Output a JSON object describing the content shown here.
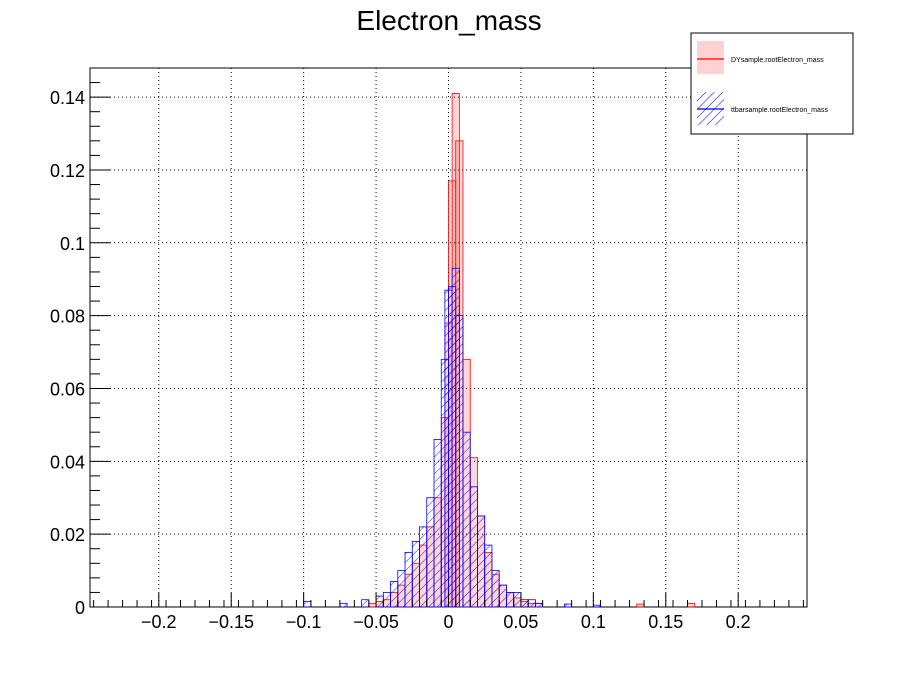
{
  "chart_data": {
    "type": "histogram",
    "title": "Electron_mass",
    "xlabel": "",
    "ylabel": "",
    "xlim": [
      -0.2475,
      0.2475
    ],
    "ylim": [
      0,
      0.148
    ],
    "x_ticks": [
      -0.2,
      -0.15,
      -0.1,
      -0.05,
      0,
      0.05,
      0.1,
      0.15,
      0.2
    ],
    "x_tick_labels": [
      "−0.2",
      "−0.15",
      "−0.1",
      "−0.05",
      "0",
      "0.05",
      "0.1",
      "0.15",
      "0.2"
    ],
    "y_ticks": [
      0,
      0.02,
      0.04,
      0.06,
      0.08,
      0.1,
      0.12,
      0.14
    ],
    "y_tick_labels": [
      "0",
      "0.02",
      "0.04",
      "0.06",
      "0.08",
      "0.1",
      "0.12",
      "0.14"
    ],
    "grid": true,
    "legend_position": "top-right",
    "bin_width": 0.005,
    "series": [
      {
        "name": "DYsample.rootElectron_mass",
        "color": "#ff0000",
        "fill": "#ff0000",
        "fill_style": "solid-translucent",
        "bins": [
          [
            -0.055,
            0.001
          ],
          [
            -0.05,
            0.0015
          ],
          [
            -0.045,
            0.002
          ],
          [
            -0.04,
            0.004
          ],
          [
            -0.035,
            0.006
          ],
          [
            -0.03,
            0.009
          ],
          [
            -0.025,
            0.012
          ],
          [
            -0.02,
            0.017
          ],
          [
            -0.015,
            0.022
          ],
          [
            -0.01,
            0.03
          ],
          [
            -0.005,
            0.052
          ],
          [
            -0.0025,
            0.078
          ],
          [
            0,
            0.117
          ],
          [
            0.0025,
            0.141
          ],
          [
            0.005,
            0.128
          ],
          [
            0.01,
            0.068
          ],
          [
            0.015,
            0.041
          ],
          [
            0.02,
            0.025
          ],
          [
            0.025,
            0.015
          ],
          [
            0.03,
            0.009
          ],
          [
            0.035,
            0.006
          ],
          [
            0.04,
            0.004
          ],
          [
            0.045,
            0.0025
          ],
          [
            0.05,
            0.0015
          ],
          [
            0.055,
            0.001
          ],
          [
            0.06,
            0.001
          ],
          [
            0.13,
            0.0008
          ],
          [
            0.165,
            0.001
          ]
        ]
      },
      {
        "name": "ttbarsample.rootElectron_mass",
        "color": "#0000ff",
        "fill": "#0000ff",
        "fill_style": "hatched",
        "bins": [
          [
            -0.1,
            0.0015
          ],
          [
            -0.075,
            0.001
          ],
          [
            -0.06,
            0.002
          ],
          [
            -0.05,
            0.003
          ],
          [
            -0.045,
            0.004
          ],
          [
            -0.04,
            0.007
          ],
          [
            -0.035,
            0.01
          ],
          [
            -0.03,
            0.015
          ],
          [
            -0.025,
            0.018
          ],
          [
            -0.02,
            0.022
          ],
          [
            -0.015,
            0.03
          ],
          [
            -0.01,
            0.046
          ],
          [
            -0.005,
            0.068
          ],
          [
            -0.0025,
            0.087
          ],
          [
            0,
            0.088
          ],
          [
            0.0025,
            0.093
          ],
          [
            0.005,
            0.08
          ],
          [
            0.01,
            0.048
          ],
          [
            0.015,
            0.033
          ],
          [
            0.02,
            0.025
          ],
          [
            0.025,
            0.017
          ],
          [
            0.03,
            0.01
          ],
          [
            0.035,
            0.006
          ],
          [
            0.04,
            0.004
          ],
          [
            0.045,
            0.004
          ],
          [
            0.05,
            0.002
          ],
          [
            0.055,
            0.002
          ],
          [
            0.06,
            0.001
          ],
          [
            0.08,
            0.0008
          ],
          [
            0.1,
            0.0005
          ]
        ]
      }
    ]
  }
}
